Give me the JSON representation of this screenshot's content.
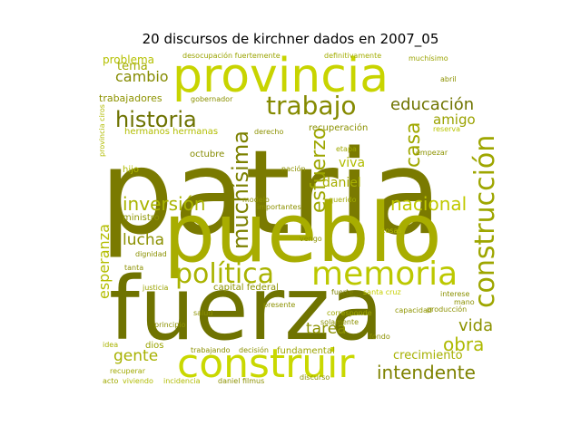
{
  "title": "20 discursos de kirchner dados en 2007_05",
  "words": [
    {
      "text": "patria",
      "color": "#7a7a00"
    },
    {
      "text": "pueblo",
      "color": "#a8ad00"
    },
    {
      "text": "fuerza",
      "color": "#6f7300"
    },
    {
      "text": "provincia",
      "color": "#c8d400"
    },
    {
      "text": "construir",
      "color": "#c9d800"
    },
    {
      "text": "memoria",
      "color": "#bcc800"
    },
    {
      "text": "política",
      "color": "#a9b300"
    },
    {
      "text": "construcción",
      "color": "#9ea600"
    },
    {
      "text": "trabajo",
      "color": "#858a00"
    },
    {
      "text": "historia",
      "color": "#6d7200"
    },
    {
      "text": "educación",
      "color": "#6f7400"
    },
    {
      "text": "inversión",
      "color": "#a9b400"
    },
    {
      "text": "nacional",
      "color": "#c0c900"
    },
    {
      "text": "intendente",
      "color": "#7e8200"
    },
    {
      "text": "muchísima",
      "color": "#7c8100"
    },
    {
      "text": "esfuerzo",
      "color": "#9da600"
    },
    {
      "text": "casa",
      "color": "#a0a800"
    },
    {
      "text": "cambio",
      "color": "#858b00"
    },
    {
      "text": "obra",
      "color": "#aeb900"
    },
    {
      "text": "vida",
      "color": "#8c9200"
    },
    {
      "text": "gente",
      "color": "#a7b100"
    },
    {
      "text": "lucha",
      "color": "#8b9000"
    },
    {
      "text": "esperanza",
      "color": "#b3bd00"
    },
    {
      "text": "tarea",
      "color": "#8c9200"
    },
    {
      "text": "crecimiento",
      "color": "#a6b000"
    },
    {
      "text": "viva",
      "color": "#b0bc00"
    },
    {
      "text": "daniel",
      "color": "#a6ae00"
    },
    {
      "text": "problema",
      "color": "#b4c000"
    },
    {
      "text": "tema",
      "color": "#a3ad00"
    },
    {
      "text": "amigo",
      "color": "#9aa200"
    },
    {
      "text": "trabajadores",
      "color": "#8d9300"
    },
    {
      "text": "fundamental",
      "color": "#9ca400"
    },
    {
      "text": "capital federal",
      "color": "#8c9200"
    },
    {
      "text": "recuperación",
      "color": "#8a9000"
    },
    {
      "text": "hermanos hermanas",
      "color": "#b2bd00"
    },
    {
      "text": "octubre",
      "color": "#858b00"
    },
    {
      "text": "hijo",
      "color": "#b0bb00"
    },
    {
      "text": "ministro",
      "color": "#8e9500"
    },
    {
      "text": "capacidad",
      "color": "#8f9500"
    },
    {
      "text": "dignidad",
      "color": "#8a9000"
    },
    {
      "text": "dios",
      "color": "#9aa300"
    },
    {
      "text": "desocupación fuertemente",
      "color": "#9aa300"
    },
    {
      "text": "definitivamente",
      "color": "#a3ad00"
    },
    {
      "text": "muchísimo",
      "color": "#9aa300"
    },
    {
      "text": "gobernador",
      "color": "#8a9000"
    },
    {
      "text": "reserva",
      "color": "#b9c400"
    },
    {
      "text": "empezar",
      "color": "#8d9300"
    },
    {
      "text": "nación",
      "color": "#8c9100"
    },
    {
      "text": "modelo",
      "color": "#8c9100"
    },
    {
      "text": "importantes",
      "color": "#8c9100"
    },
    {
      "text": "querido",
      "color": "#a0a900"
    },
    {
      "text": "interese",
      "color": "#8a9000"
    },
    {
      "text": "mano",
      "color": "#8a9000"
    },
    {
      "text": "corresponde",
      "color": "#9ea700"
    },
    {
      "text": "fuerte",
      "color": "#7e8300"
    },
    {
      "text": "recuperar",
      "color": "#a0a900"
    },
    {
      "text": "trabajando",
      "color": "#8c9100"
    },
    {
      "text": "decisión",
      "color": "#8c9100"
    },
    {
      "text": "discurso",
      "color": "#8c9100"
    },
    {
      "text": "idea",
      "color": "#a9b300"
    },
    {
      "text": "tanta",
      "color": "#8c9100"
    },
    {
      "text": "etapa",
      "color": "#a0a900"
    },
    {
      "text": "vengo",
      "color": "#8c9100"
    },
    {
      "text": "fondo",
      "color": "#8c9100"
    },
    {
      "text": "justicia",
      "color": "#9aa300"
    },
    {
      "text": "solamente",
      "color": "#8c9100"
    },
    {
      "text": "provincia ciros",
      "color": "#b0bb00"
    },
    {
      "text": "acto",
      "color": "#a0a900"
    },
    {
      "text": "daniel filmus",
      "color": "#8c9100"
    },
    {
      "text": "producción",
      "color": "#8c9100"
    },
    {
      "text": "abril",
      "color": "#8c9100"
    },
    {
      "text": "salud",
      "color": "#8c9100"
    },
    {
      "text": "principio",
      "color": "#8c9100"
    },
    {
      "text": "santa cruz",
      "color": "#c5cf00"
    },
    {
      "text": "presente",
      "color": "#8c9100"
    },
    {
      "text": "derecho",
      "color": "#8c9100"
    },
    {
      "text": "viviendo",
      "color": "#b0bb00"
    },
    {
      "text": "incidencia",
      "color": "#b0bb00"
    },
    {
      "text": "cosas",
      "color": "#b0bb00"
    }
  ]
}
